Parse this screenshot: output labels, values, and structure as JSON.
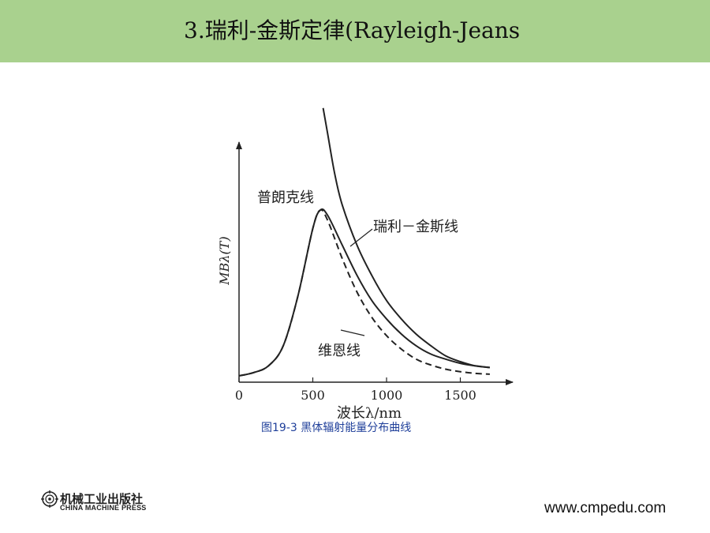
{
  "slide": {
    "title": "3.瑞利-金斯定律(Rayleigh-Jeans",
    "caption": "图19-3    黑体辐射能量分布曲线",
    "footer": {
      "publisher_cn": "机械工业出版社",
      "publisher_en": "CHINA MACHINE PRESS",
      "website": "www.cmpedu.com"
    }
  },
  "chart_data": {
    "type": "line",
    "title": "",
    "xlabel": "波长λ/nm",
    "ylabel": "MBλ(T)",
    "x_ticks": [
      "0",
      "500",
      "1000",
      "1500"
    ],
    "xlim": [
      0,
      1800
    ],
    "series": [
      {
        "name": "普朗克线",
        "style": "solid",
        "x": [
          0,
          100,
          200,
          300,
          400,
          500,
          550,
          600,
          700,
          800,
          900,
          1000,
          1100,
          1200,
          1300,
          1400,
          1500,
          1600,
          1700
        ],
        "y": [
          0,
          0.02,
          0.06,
          0.18,
          0.48,
          0.88,
          0.99,
          0.96,
          0.78,
          0.6,
          0.45,
          0.34,
          0.25,
          0.18,
          0.13,
          0.1,
          0.075,
          0.06,
          0.05
        ]
      },
      {
        "name": "瑞利－金斯线",
        "style": "solid",
        "x": [
          570,
          600,
          650,
          700,
          800,
          900,
          1000,
          1100,
          1200,
          1300,
          1400,
          1500,
          1600,
          1700
        ],
        "y": [
          1.6,
          1.45,
          1.2,
          1.02,
          0.78,
          0.6,
          0.45,
          0.34,
          0.25,
          0.18,
          0.12,
          0.085,
          0.06,
          0.05
        ]
      },
      {
        "name": "维恩线",
        "style": "dashed",
        "x": [
          0,
          100,
          200,
          300,
          400,
          500,
          550,
          600,
          700,
          800,
          900,
          1000,
          1100,
          1200,
          1300,
          1400,
          1500,
          1600,
          1700
        ],
        "y": [
          0,
          0.02,
          0.06,
          0.18,
          0.48,
          0.88,
          0.99,
          0.93,
          0.7,
          0.5,
          0.35,
          0.24,
          0.16,
          0.1,
          0.065,
          0.04,
          0.025,
          0.015,
          0.01
        ]
      }
    ]
  }
}
